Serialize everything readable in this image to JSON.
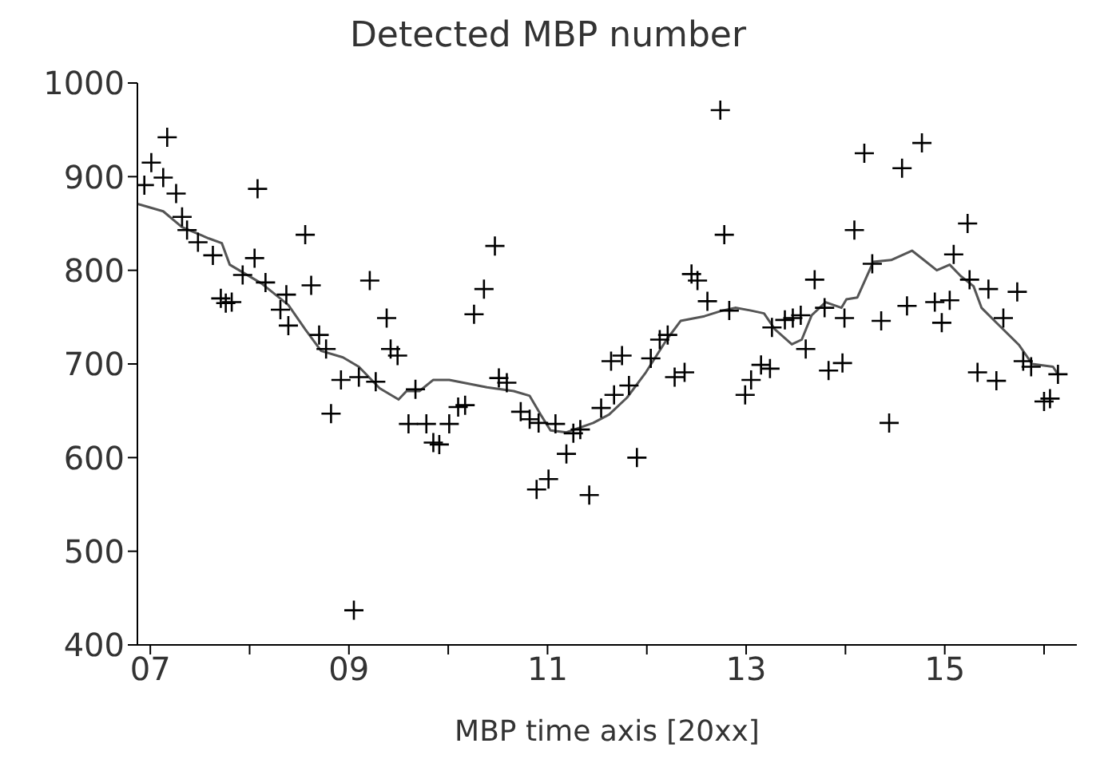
{
  "chart_data": {
    "type": "scatter",
    "title": "Detected MBP number",
    "xlabel": "MBP time axis [20xx]",
    "xlim": [
      6.87,
      16.33
    ],
    "ylim": [
      400,
      1000
    ],
    "xticks": [
      {
        "value": 7,
        "label": "07"
      },
      {
        "value": 8,
        "label": null
      },
      {
        "value": 9,
        "label": "09"
      },
      {
        "value": 10,
        "label": null
      },
      {
        "value": 11,
        "label": "11"
      },
      {
        "value": 12,
        "label": null
      },
      {
        "value": 13,
        "label": "13"
      },
      {
        "value": 14,
        "label": null
      },
      {
        "value": 15,
        "label": "15"
      },
      {
        "value": 16,
        "label": null
      }
    ],
    "yticks": [
      400,
      500,
      600,
      700,
      800,
      900,
      1000
    ],
    "grid": false,
    "legend": false,
    "series": [
      {
        "marker": "cross",
        "color": "#000000",
        "x": [
          7.17,
          7.01,
          6.94,
          7.13,
          7.26,
          7.32,
          7.37,
          7.48,
          7.63,
          8.08,
          8.05,
          7.93,
          8.16,
          7.71,
          7.76,
          7.82,
          8.37,
          8.31,
          8.39,
          8.56,
          8.62,
          8.7,
          8.77,
          8.82,
          8.92,
          9.1,
          9.27,
          9.21,
          9.38,
          9.42,
          9.49,
          9.05,
          9.67,
          9.6,
          9.78,
          9.85,
          9.91,
          10.01,
          10.1,
          10.17,
          10.26,
          10.36,
          10.47,
          10.51,
          10.59,
          10.73,
          10.82,
          10.91,
          11.08,
          10.89,
          11.01,
          11.19,
          11.26,
          11.33,
          11.42,
          11.54,
          11.67,
          11.82,
          11.64,
          11.75,
          11.9,
          12.04,
          12.13,
          12.21,
          12.28,
          12.38,
          12.45,
          12.51,
          12.61,
          12.74,
          12.78,
          12.83,
          12.99,
          13.05,
          13.15,
          13.24,
          13.26,
          13.39,
          13.47,
          13.55,
          13.69,
          13.6,
          13.79,
          13.83,
          13.97,
          13.99,
          14.09,
          14.19,
          14.27,
          14.36,
          14.44,
          14.57,
          14.77,
          14.62,
          14.9,
          14.97,
          15.05,
          15.09,
          15.23,
          15.25,
          15.33,
          15.52,
          15.44,
          15.59,
          15.73,
          15.79,
          15.87,
          16.0,
          16.06,
          16.14
        ],
        "values": [
          942,
          915,
          891,
          899,
          882,
          857,
          843,
          830,
          816,
          887,
          813,
          795,
          787,
          770,
          765,
          766,
          774,
          758,
          741,
          838,
          784,
          731,
          716,
          647,
          683,
          686,
          681,
          789,
          749,
          716,
          709,
          437,
          673,
          636,
          636,
          616,
          614,
          636,
          654,
          656,
          753,
          780,
          826,
          685,
          680,
          649,
          641,
          637,
          636,
          566,
          577,
          604,
          626,
          630,
          560,
          653,
          667,
          677,
          703,
          709,
          600,
          706,
          726,
          731,
          686,
          691,
          796,
          789,
          767,
          971,
          838,
          757,
          667,
          683,
          699,
          695,
          739,
          747,
          749,
          752,
          790,
          716,
          760,
          693,
          701,
          749,
          843,
          925,
          807,
          746,
          637,
          909,
          936,
          762,
          766,
          744,
          768,
          817,
          850,
          790,
          691,
          682,
          780,
          749,
          777,
          703,
          697,
          660,
          663,
          689
        ]
      },
      {
        "type": "line",
        "marker": "none",
        "color": "#555555",
        "x": [
          6.87,
          7.13,
          7.32,
          7.59,
          7.72,
          7.8,
          8.12,
          8.39,
          8.56,
          8.72,
          8.94,
          9.1,
          9.31,
          9.5,
          9.58,
          9.71,
          9.85,
          10.01,
          10.39,
          10.66,
          10.82,
          10.93,
          11.03,
          11.19,
          11.46,
          11.62,
          11.8,
          11.99,
          12.2,
          12.34,
          12.58,
          12.76,
          12.89,
          13.05,
          13.18,
          13.29,
          13.46,
          13.56,
          13.66,
          13.8,
          13.96,
          14.01,
          14.12,
          14.28,
          14.46,
          14.67,
          14.79,
          14.92,
          15.05,
          15.16,
          15.29,
          15.37,
          15.53,
          15.75,
          15.88,
          16.09,
          16.14
        ],
        "values": [
          871,
          863,
          846,
          834,
          829,
          806,
          786,
          763,
          737,
          714,
          707,
          697,
          674,
          662,
          671,
          671,
          683,
          683,
          675,
          671,
          666,
          646,
          629,
          627,
          637,
          646,
          664,
          691,
          726,
          746,
          751,
          757,
          760,
          757,
          754,
          737,
          721,
          726,
          752,
          766,
          760,
          769,
          771,
          809,
          811,
          821,
          811,
          800,
          806,
          794,
          783,
          760,
          743,
          720,
          700,
          697,
          689
        ]
      }
    ]
  }
}
